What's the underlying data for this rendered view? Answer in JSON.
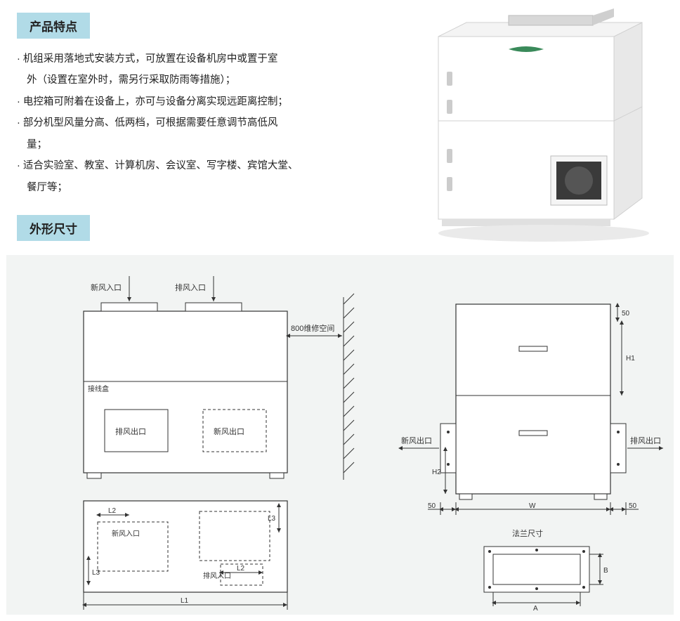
{
  "headings": {
    "features": "产品特点",
    "dimensions": "外形尺寸"
  },
  "features": [
    "机组采用落地式安装方式，可放置在设备机房中或置于室",
    "外（设置在室外时，需另行采取防雨等措施）；",
    "电控箱可附着在设备上，亦可与设备分离实现远距离控制；",
    "部分机型风量分高、低两档，可根据需要任意调节高低风",
    "量；",
    "适合实验室、教室、计算机房、会议室、写字楼、宾馆大堂、",
    "餐厅等；"
  ],
  "feature_indent": [
    false,
    true,
    false,
    false,
    true,
    false,
    true
  ],
  "colors": {
    "heading_bg": "#b1dbe7",
    "panel_bg": "#f2f4f3",
    "unit_body": "#ffffff",
    "unit_shade": "#e8e8e8",
    "unit_dark": "#cfcfcf",
    "line": "#333333"
  },
  "diagram": {
    "front": {
      "fresh_in": "新风入口",
      "exhaust_in": "排风入口",
      "maint_space": "800维修空间",
      "junction_box": "接线盒",
      "exhaust_out": "排风出口",
      "fresh_out": "新风出口",
      "L1": "L1",
      "L2": "L2",
      "L3": "L3"
    },
    "side": {
      "fresh_out": "新风出口",
      "exhaust_out": "排风出口",
      "W": "W",
      "H1": "H1",
      "H2": "H2",
      "fifty": "50",
      "flange": "法兰尺寸",
      "A": "A",
      "B": "B"
    }
  }
}
